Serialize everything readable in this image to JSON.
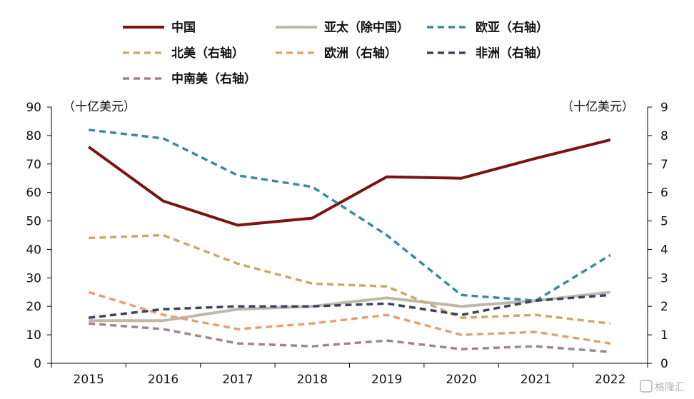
{
  "chart_data": {
    "type": "line",
    "title": "",
    "x": [
      "2015",
      "2016",
      "2017",
      "2018",
      "2019",
      "2020",
      "2021",
      "2022"
    ],
    "left_axis": {
      "label": "（十亿美元）",
      "ylim": [
        0,
        90
      ],
      "ticks": [
        0,
        10,
        20,
        30,
        40,
        50,
        60,
        70,
        80,
        90
      ]
    },
    "right_axis": {
      "label": "（十亿美元）",
      "ylim": [
        0,
        9
      ],
      "ticks": [
        0,
        1,
        2,
        3,
        4,
        5,
        6,
        7,
        8,
        9
      ]
    },
    "grid": false,
    "legend_position": "top",
    "series": [
      {
        "name": "中国",
        "axis": "left",
        "style": "solid",
        "color": "#7b1214",
        "values": [
          76,
          57,
          48.5,
          51,
          65.5,
          65,
          72,
          78.5
        ]
      },
      {
        "name": "亚太（除中国）",
        "axis": "left",
        "style": "solid",
        "color": "#bdb8aa",
        "values": [
          15,
          15,
          19,
          20,
          23,
          20,
          22,
          25
        ]
      },
      {
        "name": "欧亚（右轴）",
        "axis": "right",
        "style": "dashed",
        "color": "#3d8a9c",
        "values": [
          8.2,
          7.9,
          6.6,
          6.2,
          4.5,
          2.4,
          2.2,
          3.8
        ]
      },
      {
        "name": "北美（右轴）",
        "axis": "right",
        "style": "dashed",
        "color": "#c8ab6b",
        "values": [
          4.4,
          4.5,
          3.5,
          2.8,
          2.7,
          1.6,
          1.7,
          1.4
        ]
      },
      {
        "name": "欧洲（右轴）",
        "axis": "right",
        "style": "dashed",
        "color": "#e8a070",
        "values": [
          2.5,
          1.7,
          1.2,
          1.4,
          1.7,
          1.0,
          1.1,
          0.7
        ]
      },
      {
        "name": "非洲（右轴）",
        "axis": "right",
        "style": "dashed",
        "color": "#3d4263",
        "values": [
          1.6,
          1.9,
          2.0,
          2.0,
          2.1,
          1.7,
          2.2,
          2.4
        ]
      },
      {
        "name": "中南美（右轴）",
        "axis": "right",
        "style": "dashed",
        "color": "#a08590",
        "values": [
          1.4,
          1.2,
          0.7,
          0.6,
          0.8,
          0.5,
          0.6,
          0.4
        ]
      }
    ]
  },
  "watermark": "格隆汇"
}
